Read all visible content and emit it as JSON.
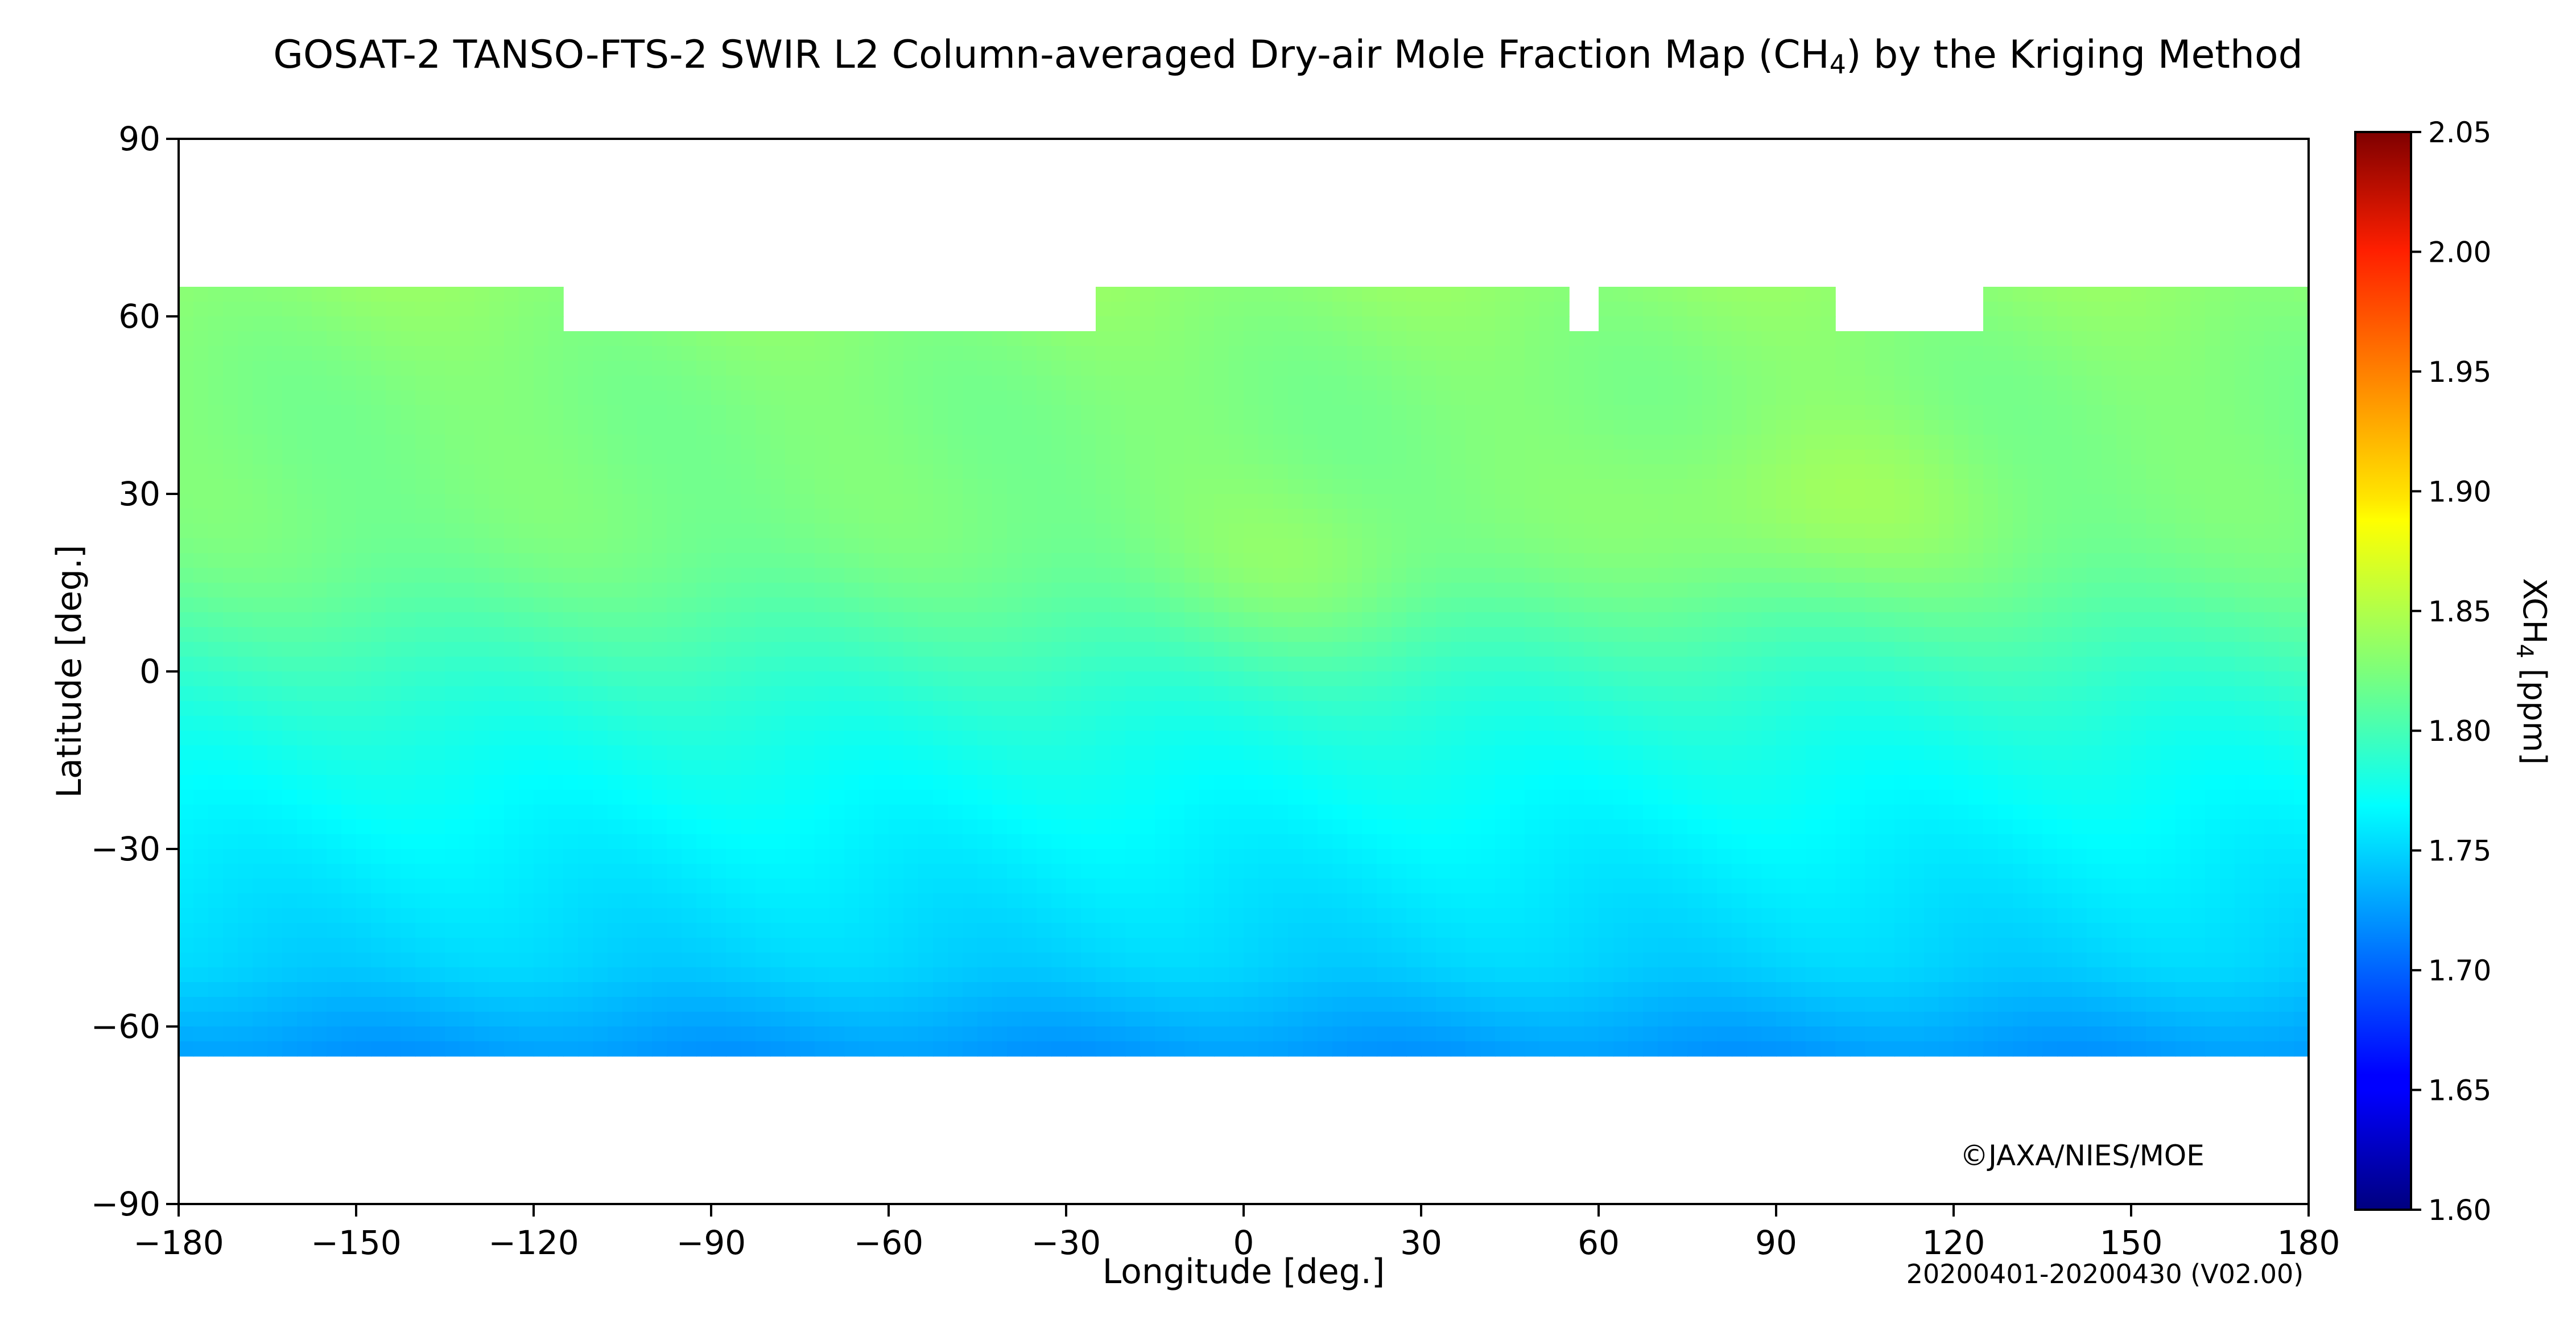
{
  "title": {
    "prefix": "GOSAT-2 TANSO-FTS-2 SWIR L2 Column-averaged Dry-air Mole Fraction Map (CH",
    "subscript": "4",
    "suffix": ") by the Kriging Method"
  },
  "map": {
    "projection": "equirectangular",
    "lon_range": [
      -180,
      180
    ],
    "lat_range": [
      -90,
      90
    ],
    "xlabel": "Longitude [deg.]",
    "ylabel": "Latitude [deg.]",
    "x_ticks": [
      "−180",
      "−150",
      "−120",
      "−90",
      "−60",
      "−30",
      "0",
      "30",
      "60",
      "90",
      "120",
      "150",
      "180"
    ],
    "x_tick_values": [
      -180,
      -150,
      -120,
      -90,
      -60,
      -30,
      0,
      30,
      60,
      90,
      120,
      150,
      180
    ],
    "y_ticks": [
      "90",
      "60",
      "30",
      "0",
      "−30",
      "−60",
      "−90"
    ],
    "y_tick_values": [
      90,
      60,
      30,
      0,
      -30,
      -60,
      -90
    ],
    "copyright": "©JAXA/NIES/MOE",
    "period": "20200401-20200430 (V02.00)",
    "no_data_color": "#ffffff",
    "coastline_color": "#000000"
  },
  "colorbar": {
    "label_main": "XCH",
    "label_sub": "4",
    "label_unit": " [ppm]",
    "min": 1.6,
    "max": 2.05,
    "ticks": [
      "2.05",
      "2.00",
      "1.95",
      "1.90",
      "1.85",
      "1.80",
      "1.75",
      "1.70",
      "1.65",
      "1.60"
    ],
    "tick_values": [
      2.05,
      2.0,
      1.95,
      1.9,
      1.85,
      1.8,
      1.75,
      1.7,
      1.65,
      1.6
    ],
    "colormap": "jet"
  }
}
